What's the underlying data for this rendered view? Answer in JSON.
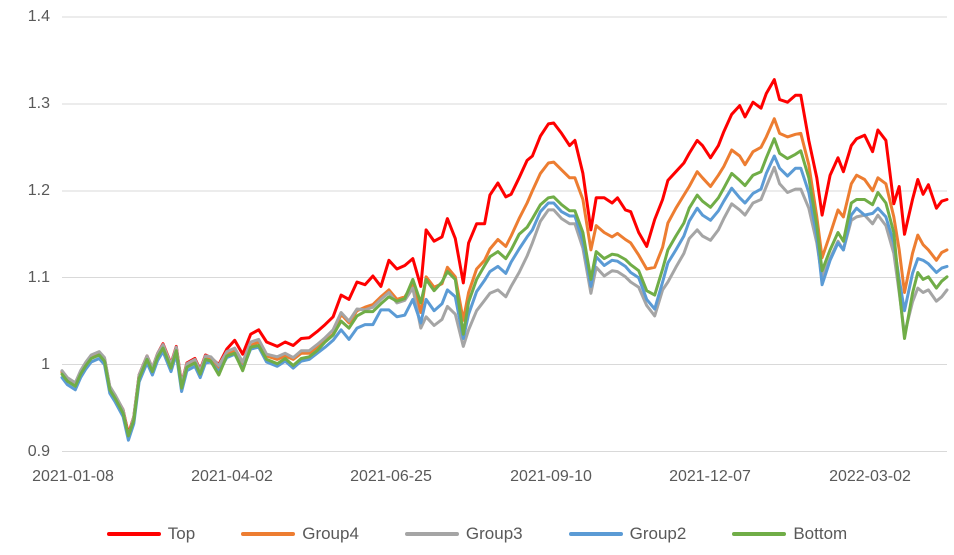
{
  "axes": {
    "y": {
      "ticks": [
        "1.4",
        "1.3",
        "1.2",
        "1.1",
        "1",
        "0.9"
      ]
    },
    "x": {
      "ticks": [
        "2021-01-08",
        "2021-04-02",
        "2021-06-25",
        "2021-09-10",
        "2021-12-07",
        "2022-03-02"
      ]
    }
  },
  "colors": {
    "grid": "#D9D9D9",
    "axis_text": "#595959",
    "background": "#FFFFFF"
  },
  "chart_data": {
    "type": "line",
    "title": "",
    "xlabel": "",
    "ylabel": "",
    "ylim": [
      0.9,
      1.4
    ],
    "y_tick_step": 0.1,
    "grid": "horizontal",
    "legend_position": "bottom",
    "x_unit": "trading-day index from first point",
    "x_tick_labels": [
      "2021-01-08",
      "2021-04-02",
      "2021-06-25",
      "2021-09-10",
      "2021-12-07",
      "2022-03-02"
    ],
    "x_tick_days": [
      4,
      64,
      124,
      184,
      244,
      304
    ],
    "x_max_day": 333,
    "x_days": [
      0,
      2,
      5,
      7,
      9,
      11,
      14,
      16,
      18,
      20,
      23,
      25,
      27,
      29,
      32,
      34,
      36,
      38,
      41,
      43,
      45,
      47,
      50,
      52,
      54,
      56,
      59,
      62,
      65,
      68,
      71,
      74,
      77,
      81,
      84,
      87,
      90,
      93,
      96,
      99,
      102,
      105,
      108,
      111,
      114,
      117,
      120,
      123,
      126,
      129,
      132,
      135,
      137,
      140,
      143,
      145,
      148,
      151,
      153,
      156,
      159,
      161,
      164,
      167,
      169,
      172,
      175,
      177,
      180,
      183,
      185,
      188,
      191,
      193,
      196,
      199,
      201,
      204,
      207,
      209,
      212,
      214,
      217,
      220,
      223,
      226,
      228,
      231,
      234,
      236,
      239,
      241,
      244,
      247,
      249,
      252,
      255,
      257,
      260,
      263,
      265,
      268,
      270,
      273,
      276,
      278,
      281,
      284,
      286,
      289,
      292,
      294,
      297,
      299,
      302,
      305,
      307,
      310,
      313,
      315,
      317,
      320,
      322,
      324,
      326,
      329,
      331,
      333
    ],
    "series": [
      {
        "name": "Top",
        "color": "#FF0000",
        "values": [
          0.992,
          0.984,
          0.978,
          0.992,
          1.002,
          1.01,
          1.014,
          1.007,
          0.974,
          0.964,
          0.948,
          0.92,
          0.94,
          0.988,
          1.01,
          0.996,
          1.013,
          1.024,
          1.001,
          1.021,
          0.978,
          1.002,
          1.007,
          0.994,
          1.011,
          1.008,
          1.0,
          1.018,
          1.028,
          1.012,
          1.035,
          1.04,
          1.026,
          1.021,
          1.026,
          1.022,
          1.03,
          1.031,
          1.038,
          1.046,
          1.055,
          1.08,
          1.075,
          1.095,
          1.092,
          1.102,
          1.09,
          1.12,
          1.11,
          1.114,
          1.122,
          1.09,
          1.155,
          1.142,
          1.147,
          1.168,
          1.145,
          1.094,
          1.14,
          1.162,
          1.162,
          1.195,
          1.209,
          1.193,
          1.196,
          1.215,
          1.235,
          1.24,
          1.263,
          1.277,
          1.278,
          1.266,
          1.252,
          1.258,
          1.22,
          1.155,
          1.192,
          1.192,
          1.186,
          1.192,
          1.178,
          1.176,
          1.152,
          1.136,
          1.167,
          1.19,
          1.212,
          1.222,
          1.232,
          1.243,
          1.258,
          1.252,
          1.238,
          1.252,
          1.268,
          1.288,
          1.298,
          1.285,
          1.302,
          1.295,
          1.312,
          1.328,
          1.305,
          1.302,
          1.31,
          1.31,
          1.258,
          1.215,
          1.172,
          1.218,
          1.238,
          1.222,
          1.252,
          1.26,
          1.264,
          1.245,
          1.27,
          1.258,
          1.185,
          1.205,
          1.15,
          1.19,
          1.213,
          1.196,
          1.207,
          1.18,
          1.188,
          1.19
        ]
      },
      {
        "name": "Group4",
        "color": "#ED7D31",
        "values": [
          0.991,
          0.983,
          0.977,
          0.991,
          1.001,
          1.009,
          1.013,
          1.006,
          0.973,
          0.963,
          0.946,
          0.919,
          0.939,
          0.986,
          1.008,
          0.994,
          1.011,
          1.021,
          0.998,
          1.018,
          0.975,
          0.999,
          1.004,
          0.991,
          1.008,
          1.006,
          0.996,
          1.012,
          1.016,
          1.0,
          1.022,
          1.026,
          1.01,
          1.006,
          1.01,
          1.006,
          1.013,
          1.013,
          1.02,
          1.027,
          1.035,
          1.058,
          1.048,
          1.062,
          1.066,
          1.069,
          1.078,
          1.086,
          1.075,
          1.078,
          1.092,
          1.06,
          1.101,
          1.089,
          1.093,
          1.112,
          1.101,
          1.051,
          1.083,
          1.11,
          1.12,
          1.133,
          1.144,
          1.136,
          1.148,
          1.168,
          1.186,
          1.2,
          1.22,
          1.232,
          1.233,
          1.224,
          1.215,
          1.215,
          1.19,
          1.132,
          1.16,
          1.152,
          1.147,
          1.151,
          1.144,
          1.14,
          1.126,
          1.11,
          1.112,
          1.135,
          1.163,
          1.18,
          1.195,
          1.205,
          1.222,
          1.215,
          1.205,
          1.218,
          1.228,
          1.247,
          1.24,
          1.23,
          1.245,
          1.25,
          1.262,
          1.283,
          1.266,
          1.262,
          1.265,
          1.266,
          1.23,
          1.17,
          1.123,
          1.15,
          1.178,
          1.17,
          1.208,
          1.218,
          1.213,
          1.2,
          1.215,
          1.208,
          1.17,
          1.132,
          1.083,
          1.128,
          1.149,
          1.138,
          1.132,
          1.12,
          1.129,
          1.132
        ]
      },
      {
        "name": "Group3",
        "color": "#A5A5A5",
        "values": [
          0.993,
          0.985,
          0.979,
          0.993,
          1.003,
          1.011,
          1.015,
          1.008,
          0.975,
          0.965,
          0.948,
          0.916,
          0.94,
          0.988,
          1.01,
          0.996,
          1.013,
          1.023,
          1.0,
          1.02,
          0.977,
          1.001,
          1.006,
          0.993,
          1.01,
          1.009,
          0.999,
          1.015,
          1.019,
          1.003,
          1.026,
          1.029,
          1.012,
          1.009,
          1.013,
          1.008,
          1.016,
          1.016,
          1.023,
          1.031,
          1.04,
          1.06,
          1.05,
          1.064,
          1.063,
          1.066,
          1.075,
          1.083,
          1.071,
          1.074,
          1.088,
          1.042,
          1.055,
          1.045,
          1.052,
          1.067,
          1.058,
          1.021,
          1.04,
          1.062,
          1.074,
          1.082,
          1.086,
          1.078,
          1.09,
          1.106,
          1.125,
          1.14,
          1.165,
          1.178,
          1.178,
          1.168,
          1.162,
          1.162,
          1.134,
          1.082,
          1.112,
          1.102,
          1.108,
          1.107,
          1.101,
          1.095,
          1.089,
          1.068,
          1.056,
          1.086,
          1.095,
          1.112,
          1.128,
          1.145,
          1.155,
          1.148,
          1.143,
          1.155,
          1.168,
          1.185,
          1.178,
          1.172,
          1.186,
          1.19,
          1.205,
          1.227,
          1.208,
          1.198,
          1.202,
          1.202,
          1.18,
          1.14,
          1.1,
          1.122,
          1.142,
          1.132,
          1.166,
          1.17,
          1.172,
          1.162,
          1.172,
          1.16,
          1.128,
          1.083,
          1.035,
          1.072,
          1.088,
          1.083,
          1.086,
          1.073,
          1.078,
          1.086
        ]
      },
      {
        "name": "Group2",
        "color": "#5B9BD5",
        "values": [
          0.985,
          0.977,
          0.971,
          0.985,
          0.995,
          1.003,
          1.007,
          1.0,
          0.967,
          0.957,
          0.94,
          0.913,
          0.932,
          0.98,
          1.002,
          0.988,
          1.005,
          1.015,
          0.992,
          1.012,
          0.969,
          0.993,
          0.998,
          0.985,
          1.002,
          1.003,
          0.992,
          1.008,
          1.012,
          0.995,
          1.018,
          1.02,
          1.003,
          0.998,
          1.004,
          0.996,
          1.004,
          1.006,
          1.013,
          1.02,
          1.028,
          1.04,
          1.029,
          1.042,
          1.046,
          1.046,
          1.063,
          1.063,
          1.055,
          1.057,
          1.075,
          1.048,
          1.075,
          1.062,
          1.07,
          1.086,
          1.078,
          1.03,
          1.058,
          1.084,
          1.097,
          1.107,
          1.113,
          1.105,
          1.118,
          1.133,
          1.147,
          1.155,
          1.176,
          1.186,
          1.186,
          1.176,
          1.171,
          1.171,
          1.142,
          1.09,
          1.124,
          1.114,
          1.12,
          1.119,
          1.113,
          1.106,
          1.1,
          1.075,
          1.064,
          1.095,
          1.117,
          1.132,
          1.148,
          1.165,
          1.18,
          1.172,
          1.166,
          1.177,
          1.188,
          1.203,
          1.192,
          1.186,
          1.197,
          1.202,
          1.22,
          1.24,
          1.226,
          1.217,
          1.226,
          1.226,
          1.198,
          1.148,
          1.092,
          1.12,
          1.14,
          1.132,
          1.172,
          1.18,
          1.172,
          1.174,
          1.18,
          1.17,
          1.14,
          1.098,
          1.062,
          1.105,
          1.122,
          1.12,
          1.116,
          1.106,
          1.111,
          1.113
        ]
      },
      {
        "name": "Bottom",
        "color": "#70AD47",
        "values": [
          0.989,
          0.981,
          0.975,
          0.989,
          0.999,
          1.007,
          1.011,
          1.004,
          0.971,
          0.961,
          0.944,
          0.918,
          0.936,
          0.984,
          1.006,
          0.992,
          1.009,
          1.019,
          0.996,
          1.016,
          0.973,
          0.997,
          1.002,
          0.989,
          1.006,
          1.004,
          0.988,
          1.01,
          1.013,
          0.993,
          1.02,
          1.022,
          1.006,
          1.001,
          1.007,
          0.999,
          1.007,
          1.009,
          1.016,
          1.026,
          1.034,
          1.05,
          1.042,
          1.056,
          1.061,
          1.061,
          1.07,
          1.078,
          1.073,
          1.076,
          1.098,
          1.071,
          1.098,
          1.085,
          1.095,
          1.107,
          1.098,
          1.035,
          1.072,
          1.098,
          1.114,
          1.124,
          1.13,
          1.122,
          1.132,
          1.15,
          1.158,
          1.168,
          1.184,
          1.192,
          1.193,
          1.184,
          1.177,
          1.177,
          1.152,
          1.098,
          1.13,
          1.122,
          1.127,
          1.126,
          1.121,
          1.115,
          1.108,
          1.085,
          1.08,
          1.11,
          1.132,
          1.148,
          1.163,
          1.18,
          1.195,
          1.188,
          1.181,
          1.192,
          1.203,
          1.22,
          1.212,
          1.206,
          1.218,
          1.222,
          1.238,
          1.26,
          1.243,
          1.237,
          1.242,
          1.246,
          1.215,
          1.16,
          1.108,
          1.132,
          1.152,
          1.142,
          1.186,
          1.19,
          1.19,
          1.184,
          1.198,
          1.186,
          1.152,
          1.086,
          1.03,
          1.082,
          1.106,
          1.098,
          1.101,
          1.088,
          1.096,
          1.101
        ]
      }
    ]
  }
}
